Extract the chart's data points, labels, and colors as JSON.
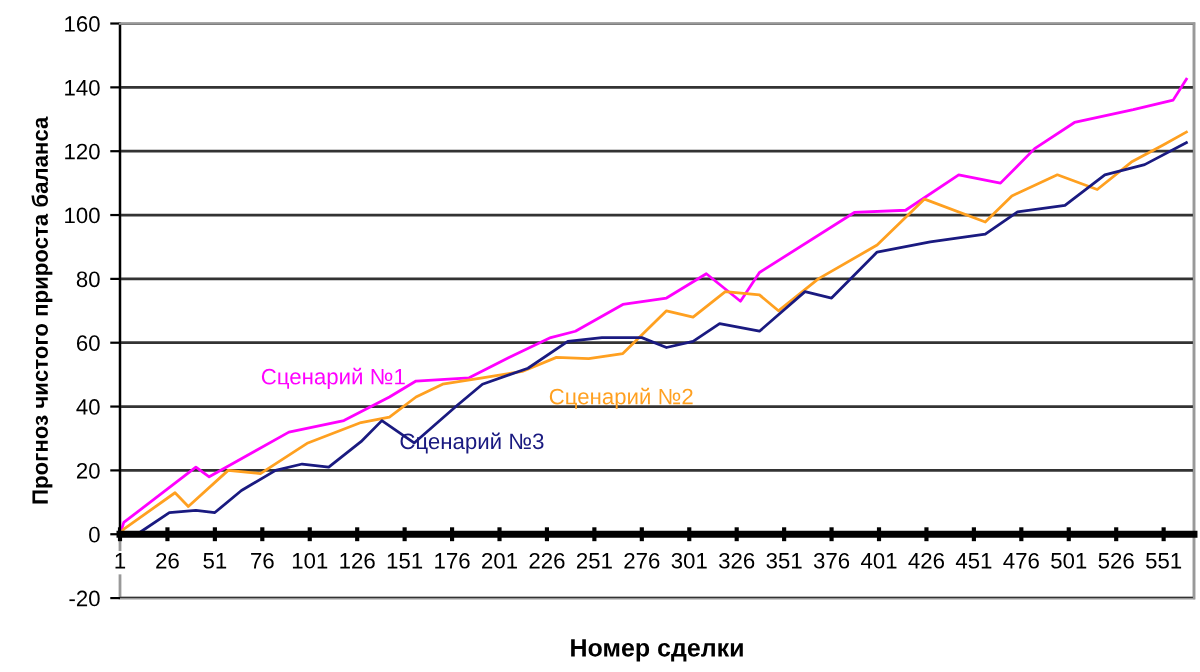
{
  "chart_data": {
    "type": "line",
    "xlabel": "Номер сделки",
    "ylabel": "Прогноз чистого прироста баланса",
    "xlim": [
      1,
      567
    ],
    "ylim": [
      -20,
      160
    ],
    "xticks": [
      1,
      26,
      51,
      76,
      101,
      126,
      151,
      176,
      201,
      226,
      251,
      276,
      301,
      326,
      351,
      376,
      401,
      426,
      451,
      476,
      501,
      526,
      551
    ],
    "yticks": [
      -20,
      0,
      20,
      40,
      60,
      80,
      100,
      120,
      140,
      160
    ],
    "grid": "y",
    "legend": false,
    "marker": "none",
    "line_style": "solid",
    "series": [
      {
        "name": "Сценарий №1",
        "color": "#ff00ff",
        "x": [
          1,
          3,
          30,
          41,
          48,
          72,
          90,
          119,
          143,
          157,
          185,
          206,
          228,
          241,
          266,
          289,
          310,
          328,
          338,
          388,
          415,
          443,
          465,
          483,
          504,
          535,
          556,
          563
        ],
        "values": [
          0,
          3.7,
          16,
          21,
          18,
          26,
          32,
          35.6,
          43,
          48,
          49,
          55.4,
          61.6,
          63.6,
          72,
          74,
          81.6,
          73,
          82,
          100.8,
          101.5,
          112.6,
          110,
          120.8,
          129,
          133,
          136,
          142.6
        ]
      },
      {
        "name": "Сценарий №2",
        "color": "#ffa020",
        "x": [
          1,
          3,
          30,
          37,
          58,
          75,
          100,
          128,
          143,
          157,
          171,
          192,
          213,
          231,
          248,
          266,
          289,
          303,
          320,
          338,
          348,
          369,
          400,
          425,
          457,
          471,
          495,
          516,
          534,
          551,
          563
        ],
        "values": [
          0,
          1.6,
          13,
          8.7,
          20,
          19,
          28.6,
          35,
          36.7,
          43,
          47,
          49,
          51,
          55.4,
          55,
          56.6,
          70,
          68,
          76,
          75,
          70,
          80,
          90.6,
          105,
          97.8,
          106,
          112.6,
          108,
          116.6,
          122,
          126
        ]
      },
      {
        "name": "Сценарий №3",
        "color": "#1a1a80",
        "x": [
          1,
          3,
          10,
          27,
          41,
          51,
          65,
          83,
          97,
          111,
          128,
          139,
          156,
          178,
          192,
          216,
          237,
          255,
          276,
          289,
          303,
          317,
          338,
          362,
          376,
          400,
          428,
          457,
          474,
          499,
          520,
          541,
          563
        ],
        "values": [
          0,
          0.5,
          0,
          6.8,
          7.5,
          6.8,
          13.7,
          20,
          22,
          21,
          29,
          35.6,
          28.6,
          40,
          47,
          52,
          60.4,
          61.6,
          61.6,
          58.5,
          60.4,
          66,
          63.6,
          76,
          74,
          88.4,
          91.6,
          94,
          101,
          103,
          112.6,
          115.8,
          122.7
        ]
      }
    ]
  }
}
